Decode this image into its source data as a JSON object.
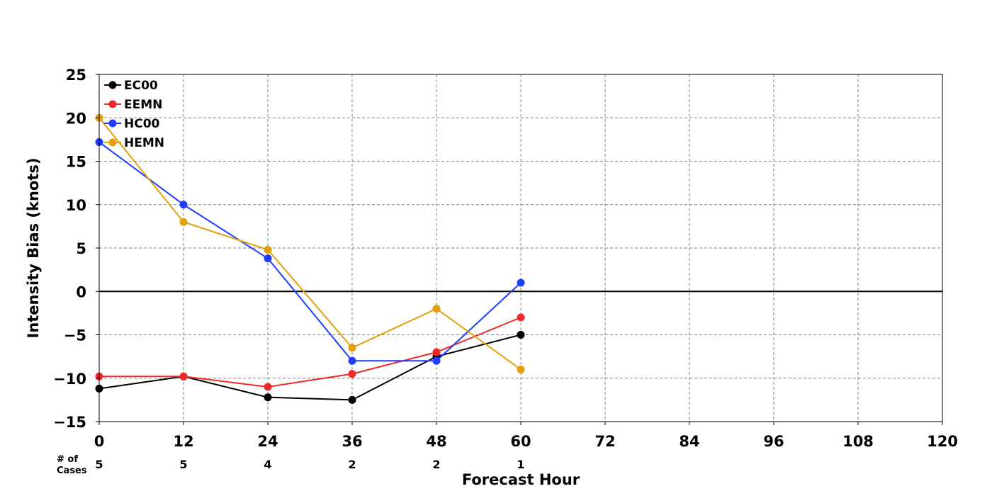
{
  "chart_data": {
    "type": "line",
    "xlabel": "Forecast Hour",
    "ylabel": "Intensity Bias (knots)",
    "xlim": [
      0,
      120
    ],
    "ylim": [
      -15,
      25
    ],
    "xticks": [
      0,
      12,
      24,
      36,
      48,
      60,
      72,
      84,
      96,
      108,
      120
    ],
    "yticks": [
      -15,
      -10,
      -5,
      0,
      5,
      10,
      15,
      20,
      25
    ],
    "ytick_labels": [
      "−15",
      "−10",
      "−5",
      "0",
      "5",
      "10",
      "15",
      "20",
      "25"
    ],
    "grid": true,
    "legend_position": "upper left",
    "cases_label_line1": "# of",
    "cases_label_line2": "Cases",
    "cases": [
      {
        "x": 0,
        "n": "5"
      },
      {
        "x": 12,
        "n": "5"
      },
      {
        "x": 24,
        "n": "4"
      },
      {
        "x": 36,
        "n": "2"
      },
      {
        "x": 48,
        "n": "2"
      },
      {
        "x": 60,
        "n": "1"
      }
    ],
    "series": [
      {
        "name": "EC00",
        "color": "#000000",
        "x": [
          0,
          12,
          24,
          36,
          48,
          60
        ],
        "y": [
          -11.2,
          -9.8,
          -12.2,
          -12.5,
          -7.5,
          -5.0
        ]
      },
      {
        "name": "EEMN",
        "color": "#f02a2a",
        "x": [
          0,
          12,
          24,
          36,
          48,
          60
        ],
        "y": [
          -9.8,
          -9.8,
          -11.0,
          -9.5,
          -7.0,
          -3.0
        ]
      },
      {
        "name": "HC00",
        "color": "#1f3cff",
        "x": [
          0,
          12,
          24,
          36,
          48,
          60
        ],
        "y": [
          17.2,
          10.0,
          3.8,
          -8.0,
          -8.0,
          1.0
        ]
      },
      {
        "name": "HEMN",
        "color": "#e39f0a",
        "x": [
          0,
          12,
          24,
          36,
          48,
          60
        ],
        "y": [
          20.0,
          8.0,
          4.8,
          -6.5,
          -2.0,
          -9.0
        ]
      }
    ]
  }
}
